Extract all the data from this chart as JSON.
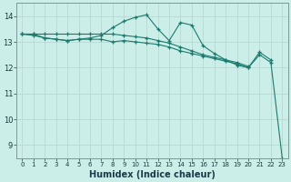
{
  "xlabel": "Humidex (Indice chaleur)",
  "bg_color": "#cceee8",
  "grid_color": "#b8d8d4",
  "line_color": "#1a7a6e",
  "x_values": [
    0,
    1,
    2,
    3,
    4,
    5,
    6,
    7,
    8,
    9,
    10,
    11,
    12,
    13,
    14,
    15,
    16,
    17,
    18,
    19,
    20,
    21,
    22,
    23
  ],
  "series1": [
    13.3,
    13.3,
    13.15,
    13.1,
    13.05,
    13.1,
    13.15,
    13.25,
    13.55,
    13.8,
    13.95,
    14.05,
    13.5,
    13.05,
    13.75,
    13.65,
    12.85,
    12.55,
    12.3,
    12.1,
    12.0,
    12.6,
    12.3,
    null
  ],
  "series2": [
    13.3,
    13.25,
    13.15,
    13.1,
    13.05,
    13.1,
    13.1,
    13.1,
    13.0,
    13.05,
    13.0,
    12.95,
    12.9,
    12.8,
    12.65,
    12.55,
    12.45,
    12.35,
    12.25,
    12.15,
    12.0,
    12.5,
    12.2,
    8.5
  ],
  "series3": [
    13.3,
    13.3,
    13.3,
    13.3,
    13.3,
    13.3,
    13.3,
    13.3,
    13.3,
    13.25,
    13.2,
    13.15,
    13.05,
    12.95,
    12.8,
    12.65,
    12.5,
    12.4,
    12.3,
    12.2,
    12.05,
    null,
    null,
    null
  ],
  "ylim": [
    8.5,
    14.5
  ],
  "yticks": [
    9,
    10,
    11,
    12,
    13,
    14
  ],
  "xlim": [
    -0.5,
    23.5
  ]
}
